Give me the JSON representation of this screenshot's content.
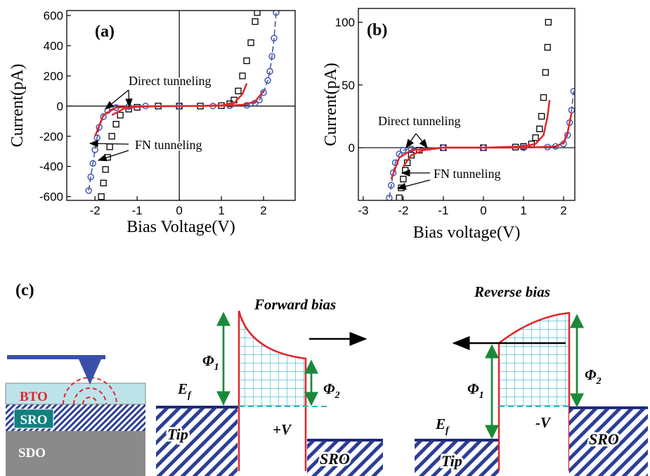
{
  "chart_data": [
    {
      "type": "scatter",
      "panel_label": "(a)",
      "xlabel": "Bias Voltage(V)",
      "ylabel": "Current(pA)",
      "xlim": [
        -2.67,
        2.75
      ],
      "ylim": [
        -625,
        633
      ],
      "xticks": [
        -2,
        -1,
        0,
        1,
        2
      ],
      "yticks": [
        -600,
        -400,
        -200,
        0,
        200,
        400,
        600
      ],
      "annotations": [
        "Direct tunneling",
        "FN tunneling"
      ],
      "series": [
        {
          "style": "square",
          "color": "#000000",
          "x": [
            -1.85,
            -1.8,
            -1.75,
            -1.7,
            -1.65,
            -1.6,
            -1.5,
            -1.4,
            -1.2,
            -1,
            -0.5,
            0,
            0.5,
            1,
            1.2,
            1.3,
            1.4,
            1.5,
            1.6,
            1.7,
            1.8,
            1.85
          ],
          "values": [
            -600,
            -510,
            -420,
            -340,
            -270,
            -200,
            -120,
            -60,
            -20,
            -8,
            0,
            0,
            0,
            3,
            15,
            40,
            100,
            200,
            300,
            420,
            560,
            620
          ]
        },
        {
          "style": "circle",
          "color": "#3a4fa8",
          "x": [
            -2.15,
            -2.1,
            -2.05,
            -2,
            -1.95,
            -1.9,
            -1.8,
            -1.7,
            -1.5,
            -1.2,
            -0.8,
            0,
            0.8,
            1.2,
            1.6,
            1.8,
            1.9,
            2,
            2.1,
            2.15,
            2.2,
            2.25,
            2.3
          ],
          "values": [
            -560,
            -470,
            -380,
            -290,
            -210,
            -140,
            -70,
            -30,
            -10,
            -3,
            0,
            0,
            0,
            2,
            5,
            20,
            40,
            90,
            170,
            230,
            330,
            450,
            620
          ]
        },
        {
          "style": "line",
          "color": "#e0262b",
          "x": [
            -1.6,
            -1.3,
            -1,
            -0.5,
            0,
            0.5,
            1,
            1.3,
            1.5,
            1.6
          ],
          "values": [
            -60,
            -15,
            -5,
            -1,
            0,
            1,
            5,
            20,
            80,
            150
          ]
        },
        {
          "style": "line",
          "color": "#e0262b",
          "x": [
            -2,
            -1.8,
            -1.5,
            -1,
            0,
            1,
            1.5,
            1.8,
            2
          ],
          "values": [
            -200,
            -60,
            -10,
            -2,
            0,
            2,
            8,
            30,
            100
          ]
        }
      ]
    },
    {
      "type": "scatter",
      "panel_label": "(b)",
      "xlabel": "Bias voltage(V)",
      "ylabel": "Current(pA)",
      "xlim": [
        -3.12,
        2.28
      ],
      "ylim": [
        -42,
        111
      ],
      "xticks": [
        -3,
        -2,
        -1,
        0,
        1,
        2
      ],
      "yticks": [
        0,
        50,
        100
      ],
      "annotations": [
        "Direct tunneling",
        "FN tunneling"
      ],
      "series": [
        {
          "style": "square",
          "color": "#000000",
          "x": [
            -2.1,
            -2.05,
            -2,
            -1.95,
            -1.9,
            -1.8,
            -1.6,
            -1,
            0,
            0.8,
            1,
            1.2,
            1.3,
            1.4,
            1.45,
            1.5,
            1.55,
            1.6,
            1.62
          ],
          "values": [
            -40,
            -32,
            -25,
            -18,
            -12,
            -6,
            -2,
            0,
            0,
            0.5,
            1,
            3,
            8,
            15,
            25,
            40,
            60,
            80,
            100
          ]
        },
        {
          "style": "circle",
          "color": "#3a4fa8",
          "x": [
            -2.35,
            -2.3,
            -2.25,
            -2.2,
            -2.1,
            -2,
            -1.8,
            -1,
            0,
            1,
            1.6,
            1.8,
            2,
            2.1,
            2.15,
            2.2,
            2.25
          ],
          "values": [
            -40,
            -30,
            -20,
            -12,
            -5,
            -2,
            -1,
            0,
            0,
            0,
            0.5,
            1,
            3,
            10,
            20,
            30,
            45
          ]
        },
        {
          "style": "line",
          "color": "#e0262b",
          "x": [
            -2,
            -1.8,
            -1.5,
            -1,
            0,
            1,
            1.3,
            1.5,
            1.6,
            1.65
          ],
          "values": [
            -15,
            -6,
            -2,
            0,
            0,
            1,
            3,
            10,
            25,
            38
          ]
        },
        {
          "style": "line",
          "color": "#e0262b",
          "x": [
            -2.3,
            -2.1,
            -1.8,
            -1,
            0,
            1,
            1.8,
            2,
            2.1,
            2.2
          ],
          "values": [
            -25,
            -8,
            -2,
            0,
            0,
            0,
            1,
            4,
            12,
            28
          ]
        }
      ]
    }
  ],
  "diagram": {
    "panel_label": "(c)",
    "forward": "Forward bias",
    "reverse": "Reverse bias",
    "layers": {
      "bto": "BTO",
      "sro": "SRO",
      "sdo": "SDO"
    },
    "phi1": {
      "symbol": "Φ",
      "sub": "1"
    },
    "phi2": {
      "symbol": "Φ",
      "sub": "2"
    },
    "ef": {
      "symbol": "E",
      "sub": "f"
    },
    "plus_v": "+V",
    "minus_v": "-V",
    "tip": "Tip",
    "sro": "SRO"
  }
}
